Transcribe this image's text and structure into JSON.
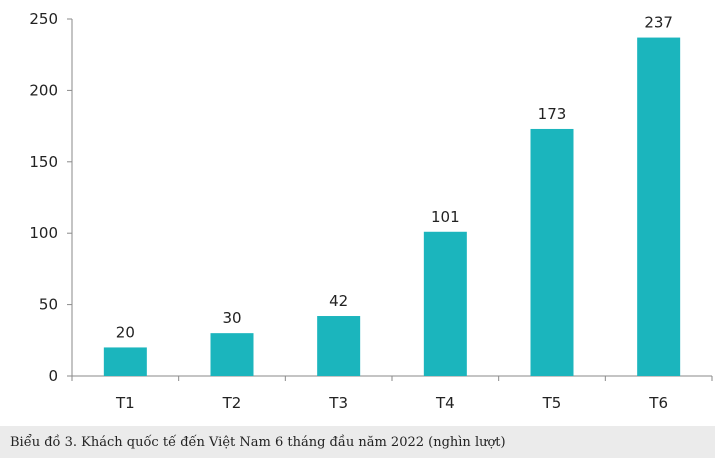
{
  "chart_data": {
    "type": "bar",
    "categories": [
      "T1",
      "T2",
      "T3",
      "T4",
      "T5",
      "T6"
    ],
    "values": [
      20,
      30,
      42,
      101,
      173,
      237
    ],
    "data_labels": [
      "20",
      "30",
      "42",
      "101",
      "173",
      "237"
    ],
    "yticks": [
      0,
      50,
      100,
      150,
      200,
      250
    ],
    "ylim": [
      0,
      250
    ],
    "grid": false,
    "bar_color": "#1bb5bd"
  },
  "caption": "Biểu đồ 3. Khách quốc tế đến Việt Nam 6 tháng đầu năm 2022 (nghìn lượt)"
}
